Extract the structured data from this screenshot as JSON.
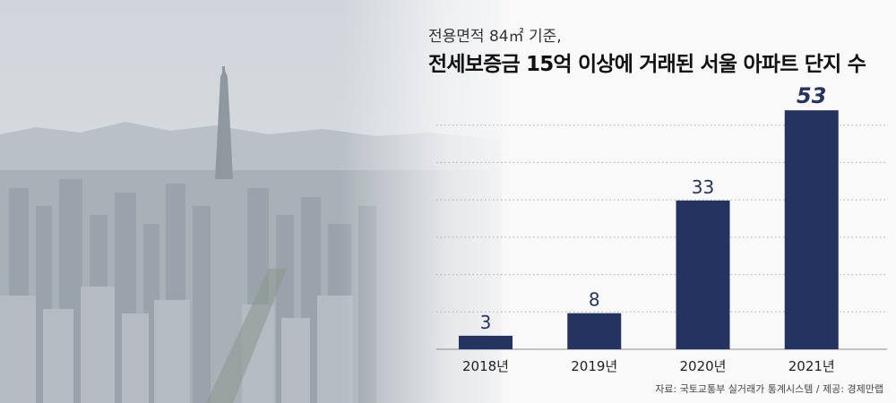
{
  "header": {
    "subtitle": "전용면적 84㎡ 기준,",
    "title": "전세보증금 15억 이상에 거래된 서울 아파트 단지 수"
  },
  "source": "자료: 국토교통부 실거래가 통계시스템 / 제공: 경제만랩",
  "colors": {
    "bar": "#253360",
    "label": "#253360",
    "grid": "#a9a9a9"
  },
  "chart_data": {
    "type": "bar",
    "title": "전세보증금 15억 이상에 거래된 서울 아파트 단지 수",
    "categories": [
      "2018년",
      "2019년",
      "2020년",
      "2021년"
    ],
    "values": [
      3,
      8,
      33,
      53
    ],
    "data_labels": [
      "3",
      "8",
      "33",
      "53"
    ],
    "ylim": [
      0,
      58
    ],
    "grid": true
  }
}
